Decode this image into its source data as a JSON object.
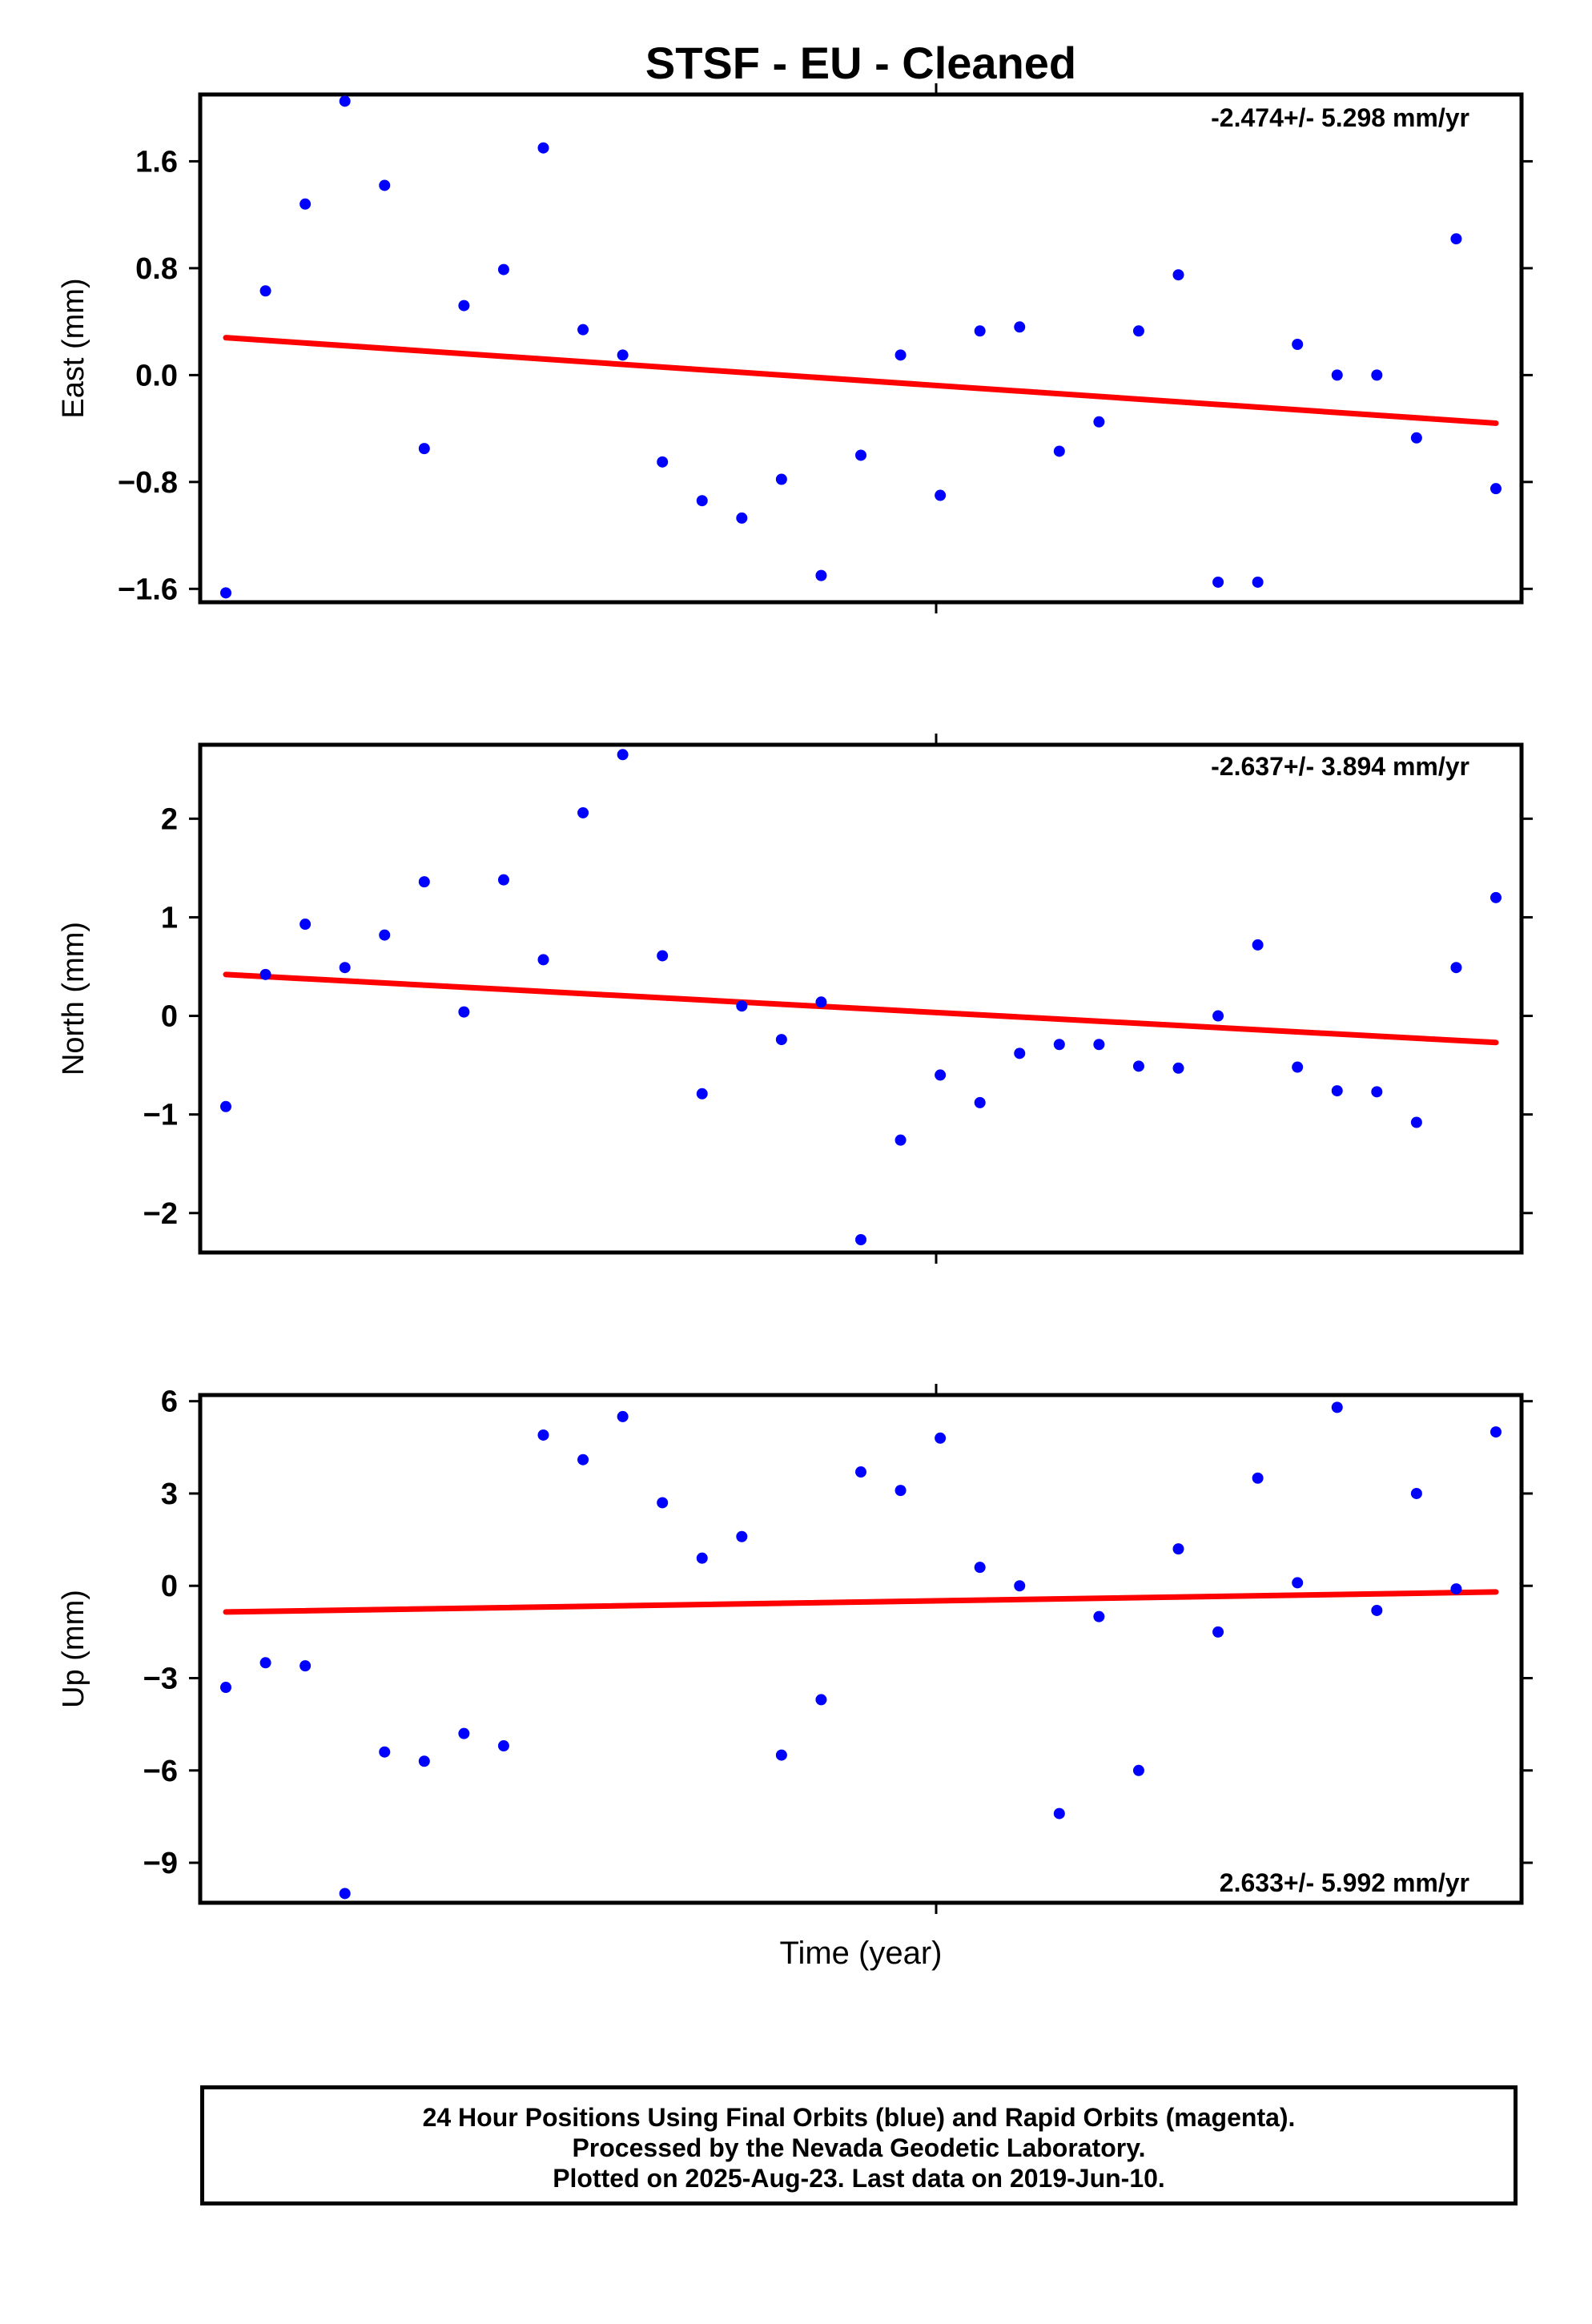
{
  "title": "STSF  - EU - Cleaned",
  "xlabel": "Time (year)",
  "colors": {
    "points": "#0000ff",
    "trend": "#ff0000",
    "frame": "#000000"
  },
  "footer": {
    "line1": "24 Hour Positions Using Final Orbits (blue) and Rapid Orbits (magenta).",
    "line2": "Processed by the Nevada Geodetic Laboratory.",
    "line3": "Plotted on 2025-Aug-23. Last data on 2019-Jun-10."
  },
  "chart_data": [
    {
      "type": "scatter",
      "ylabel": "East (mm)",
      "rate": "-2.474+/- 5.298 mm/yr",
      "ylim": [
        -1.7,
        2.1
      ],
      "yticks": [
        -1.6,
        -0.8,
        0.0,
        0.8,
        1.6
      ],
      "ytick_labels": [
        "−1.6",
        "−0.8",
        "0.0",
        "0.8",
        "1.6"
      ],
      "values": [
        -1.63,
        0.63,
        1.28,
        2.05,
        1.42,
        -0.55,
        0.52,
        0.79,
        1.7,
        0.34,
        0.15,
        -0.65,
        -0.94,
        -1.07,
        -0.78,
        -1.5,
        -0.6,
        0.15,
        -0.9,
        0.33,
        0.36,
        -0.57,
        -0.35,
        0.33,
        0.75,
        -1.55,
        -1.55,
        0.23,
        0.0,
        0.0,
        -0.47,
        1.02,
        -0.85
      ],
      "trend": [
        0.28,
        -0.36
      ]
    },
    {
      "type": "scatter",
      "ylabel": "North (mm)",
      "rate": "-2.637+/- 3.894 mm/yr",
      "ylim": [
        -2.4,
        2.75
      ],
      "yticks": [
        -2,
        -1,
        0,
        1,
        2
      ],
      "ytick_labels": [
        "−2",
        "−1",
        "0",
        "1",
        "2"
      ],
      "values": [
        -0.92,
        0.42,
        0.93,
        0.49,
        0.82,
        1.36,
        0.04,
        1.38,
        0.57,
        2.06,
        2.65,
        0.61,
        -0.79,
        0.1,
        -0.24,
        0.14,
        -2.27,
        -1.26,
        -0.6,
        -0.88,
        -0.38,
        -0.29,
        -0.29,
        -0.51,
        -0.53,
        0.0,
        0.72,
        -0.52,
        -0.76,
        -0.77,
        -1.08,
        0.49,
        1.2
      ],
      "trend": [
        0.42,
        -0.27
      ]
    },
    {
      "type": "scatter",
      "ylabel": "Up (mm)",
      "rate": "2.633+/- 5.992 mm/yr",
      "ylim": [
        -10.3,
        6.2
      ],
      "yticks": [
        -9,
        -6,
        -3,
        0,
        3,
        6
      ],
      "ytick_labels": [
        "−9",
        "−6",
        "−3",
        "0",
        "3",
        "6"
      ],
      "values": [
        -3.3,
        -2.5,
        -2.6,
        -10.0,
        -5.4,
        -5.7,
        -4.8,
        -5.2,
        4.9,
        4.1,
        5.5,
        2.7,
        0.9,
        1.6,
        -5.5,
        -3.7,
        3.7,
        3.1,
        4.8,
        0.6,
        0.0,
        -7.4,
        -1.0,
        -6.0,
        1.2,
        -1.5,
        3.5,
        0.1,
        5.8,
        -0.8,
        3.0,
        -0.1,
        5.0
      ],
      "trend": [
        -0.85,
        -0.2
      ]
    }
  ]
}
